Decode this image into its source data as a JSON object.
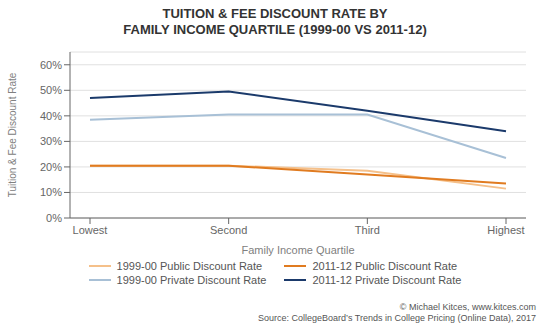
{
  "chart_data": {
    "type": "line",
    "title": "TUITION & FEE DISCOUNT RATE BY\nFAMILY INCOME QUARTILE (1999-00 VS 2011-12)",
    "xlabel": "Family Income Quartile",
    "ylabel": "Tuition & Fee Discount Rate",
    "categories": [
      "Lowest",
      "Second",
      "Third",
      "Highest"
    ],
    "series": [
      {
        "name": "1999-00 Public Discount Rate",
        "color": "#F5C08A",
        "values": [
          0.205,
          0.205,
          0.185,
          0.115
        ]
      },
      {
        "name": "2011-12 Public Discount Rate",
        "color": "#E07B20",
        "values": [
          0.205,
          0.205,
          0.17,
          0.135
        ]
      },
      {
        "name": "1999-00 Private Discount Rate",
        "color": "#A8C0D6",
        "values": [
          0.385,
          0.405,
          0.405,
          0.235
        ]
      },
      {
        "name": "2011-12 Private Discount Rate",
        "color": "#1B3A6B",
        "values": [
          0.47,
          0.495,
          0.42,
          0.34
        ]
      }
    ],
    "ylim": [
      0.0,
      0.65
    ],
    "yticks": [
      {
        "value": 0.0,
        "label": "0%"
      },
      {
        "value": 0.1,
        "label": "10%"
      },
      {
        "value": 0.2,
        "label": "20%"
      },
      {
        "value": 0.3,
        "label": "30%"
      },
      {
        "value": 0.4,
        "label": "40%"
      },
      {
        "value": 0.5,
        "label": "50%"
      },
      {
        "value": 0.6,
        "label": "60%"
      }
    ],
    "grid": true,
    "legend": "bottom",
    "annotations": [
      "© Michael Kitces, www.kitces.com",
      "Source: CollegeBoard’s Trends in College Pricing (Online Data), 2017"
    ]
  }
}
